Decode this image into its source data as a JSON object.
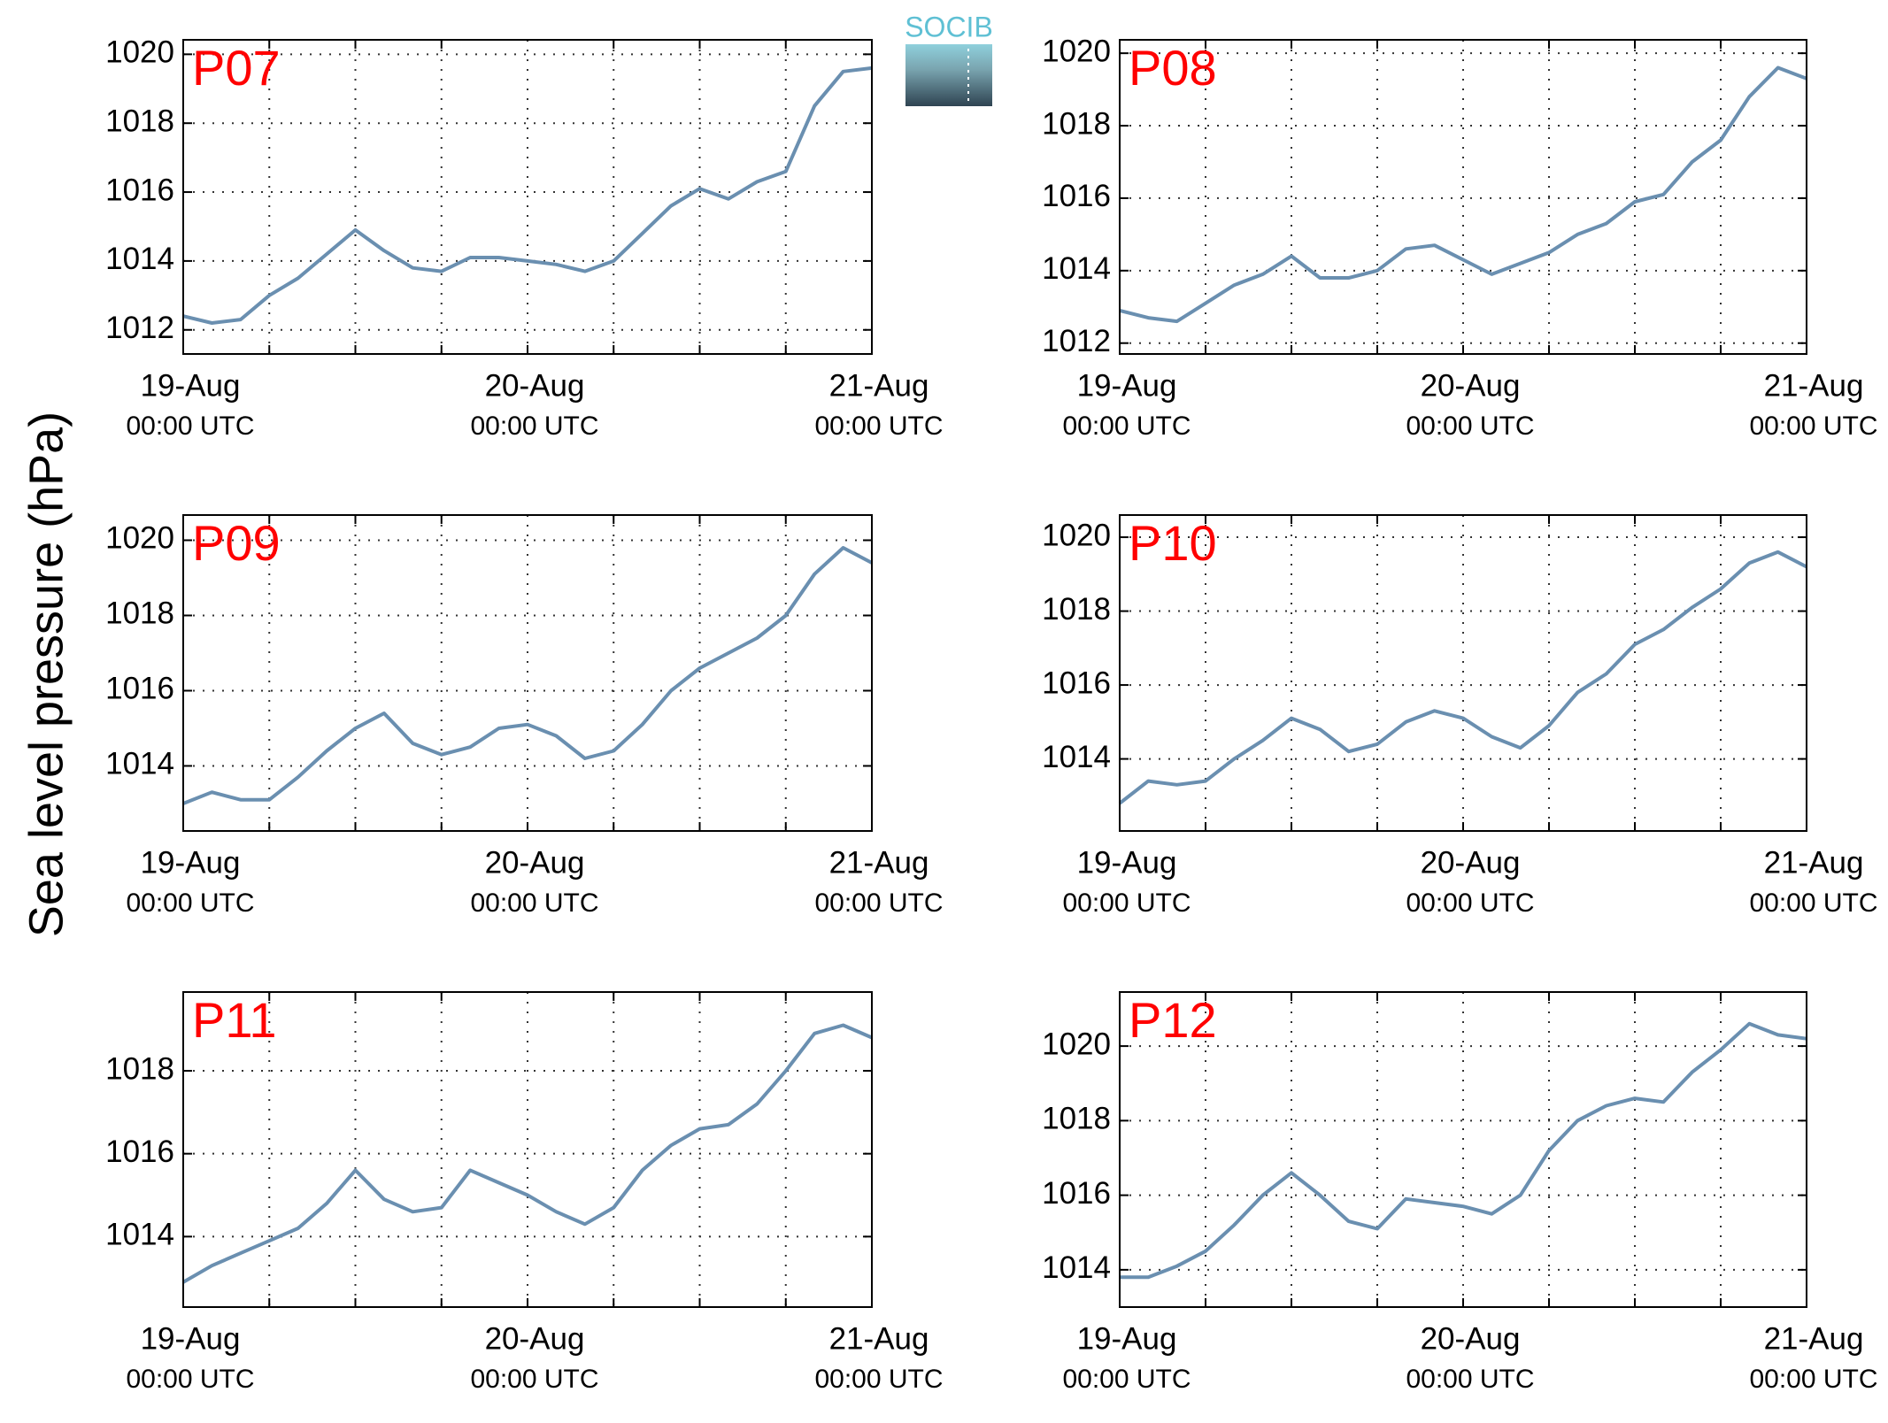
{
  "ylabel": "Sea level pressure (hPa)",
  "logo": "SOCIB",
  "chart_data": [
    {
      "type": "line",
      "title": "P07",
      "xlim": [
        0,
        48
      ],
      "ylim": [
        1011.3,
        1020.42
      ],
      "xticks": [
        {
          "value": 0,
          "label": "19-Aug",
          "sublabel": "00:00 UTC"
        },
        {
          "value": 24,
          "label": "20-Aug",
          "sublabel": "00:00 UTC"
        },
        {
          "value": 48,
          "label": "21-Aug",
          "sublabel": "00:00 UTC"
        }
      ],
      "xminor": [
        6,
        12,
        18,
        30,
        36,
        42
      ],
      "yticks": [
        1012,
        1014,
        1016,
        1018,
        1020
      ],
      "grid": true,
      "x": [
        0,
        2,
        4,
        6,
        8,
        10,
        12,
        14,
        16,
        18,
        20,
        22,
        24,
        26,
        28,
        30,
        32,
        34,
        36,
        38,
        40,
        42,
        44,
        46,
        48
      ],
      "series": [
        {
          "color": "#6a8fb0",
          "values": [
            1012.4,
            1012.2,
            1012.3,
            1013.0,
            1013.5,
            1014.2,
            1014.9,
            1014.3,
            1013.8,
            1013.7,
            1014.1,
            1014.1,
            1014.0,
            1013.9,
            1013.7,
            1014.0,
            1014.8,
            1015.6,
            1016.1,
            1015.8,
            1016.3,
            1016.6,
            1018.5,
            1019.5,
            1019.6
          ]
        }
      ]
    },
    {
      "type": "line",
      "title": "P08",
      "xlim": [
        0,
        48
      ],
      "ylim": [
        1011.7,
        1020.37
      ],
      "xticks": [
        {
          "value": 0,
          "label": "19-Aug",
          "sublabel": "00:00 UTC"
        },
        {
          "value": 24,
          "label": "20-Aug",
          "sublabel": "00:00 UTC"
        },
        {
          "value": 48,
          "label": "21-Aug",
          "sublabel": "00:00 UTC"
        }
      ],
      "xminor": [
        6,
        12,
        18,
        30,
        36,
        42
      ],
      "yticks": [
        1012,
        1014,
        1016,
        1018,
        1020
      ],
      "grid": true,
      "x": [
        0,
        2,
        4,
        6,
        8,
        10,
        12,
        14,
        16,
        18,
        20,
        22,
        24,
        26,
        28,
        30,
        32,
        34,
        36,
        38,
        40,
        42,
        44,
        46,
        48
      ],
      "series": [
        {
          "color": "#6a8fb0",
          "values": [
            1012.9,
            1012.7,
            1012.6,
            1013.1,
            1013.6,
            1013.9,
            1014.4,
            1013.8,
            1013.8,
            1014.0,
            1014.6,
            1014.7,
            1014.3,
            1013.9,
            1014.2,
            1014.5,
            1015.0,
            1015.3,
            1015.9,
            1016.1,
            1017.0,
            1017.6,
            1018.8,
            1019.6,
            1019.3
          ]
        }
      ]
    },
    {
      "type": "line",
      "title": "P09",
      "xlim": [
        0,
        48
      ],
      "ylim": [
        1012.27,
        1020.67
      ],
      "xticks": [
        {
          "value": 0,
          "label": "19-Aug",
          "sublabel": "00:00 UTC"
        },
        {
          "value": 24,
          "label": "20-Aug",
          "sublabel": "00:00 UTC"
        },
        {
          "value": 48,
          "label": "21-Aug",
          "sublabel": "00:00 UTC"
        }
      ],
      "xminor": [
        6,
        12,
        18,
        30,
        36,
        42
      ],
      "yticks": [
        1014,
        1016,
        1018,
        1020
      ],
      "grid": true,
      "x": [
        0,
        2,
        4,
        6,
        8,
        10,
        12,
        14,
        16,
        18,
        20,
        22,
        24,
        26,
        28,
        30,
        32,
        34,
        36,
        38,
        40,
        42,
        44,
        46,
        48
      ],
      "series": [
        {
          "color": "#6a8fb0",
          "values": [
            1013.0,
            1013.3,
            1013.1,
            1013.1,
            1013.7,
            1014.4,
            1015.0,
            1015.4,
            1014.6,
            1014.3,
            1014.5,
            1015.0,
            1015.1,
            1014.8,
            1014.2,
            1014.4,
            1015.1,
            1016.0,
            1016.6,
            1017.0,
            1017.4,
            1018.0,
            1019.1,
            1019.8,
            1019.4
          ]
        }
      ]
    },
    {
      "type": "line",
      "title": "P10",
      "xlim": [
        0,
        48
      ],
      "ylim": [
        1012.05,
        1020.6
      ],
      "xticks": [
        {
          "value": 0,
          "label": "19-Aug",
          "sublabel": "00:00 UTC"
        },
        {
          "value": 24,
          "label": "20-Aug",
          "sublabel": "00:00 UTC"
        },
        {
          "value": 48,
          "label": "21-Aug",
          "sublabel": "00:00 UTC"
        }
      ],
      "xminor": [
        6,
        12,
        18,
        30,
        36,
        42
      ],
      "yticks": [
        1014,
        1016,
        1018,
        1020
      ],
      "grid": true,
      "x": [
        0,
        2,
        4,
        6,
        8,
        10,
        12,
        14,
        16,
        18,
        20,
        22,
        24,
        26,
        28,
        30,
        32,
        34,
        36,
        38,
        40,
        42,
        44,
        46,
        48
      ],
      "series": [
        {
          "color": "#6a8fb0",
          "values": [
            1012.8,
            1013.4,
            1013.3,
            1013.4,
            1014.0,
            1014.5,
            1015.1,
            1014.8,
            1014.2,
            1014.4,
            1015.0,
            1015.3,
            1015.1,
            1014.6,
            1014.3,
            1014.9,
            1015.8,
            1016.3,
            1017.1,
            1017.5,
            1018.1,
            1018.6,
            1019.3,
            1019.6,
            1019.2
          ]
        }
      ]
    },
    {
      "type": "line",
      "title": "P11",
      "xlim": [
        0,
        48
      ],
      "ylim": [
        1012.3,
        1019.9
      ],
      "xticks": [
        {
          "value": 0,
          "label": "19-Aug",
          "sublabel": "00:00 UTC"
        },
        {
          "value": 24,
          "label": "20-Aug",
          "sublabel": "00:00 UTC"
        },
        {
          "value": 48,
          "label": "21-Aug",
          "sublabel": "00:00 UTC"
        }
      ],
      "xminor": [
        6,
        12,
        18,
        30,
        36,
        42
      ],
      "yticks": [
        1014,
        1016,
        1018
      ],
      "grid": true,
      "x": [
        0,
        2,
        4,
        6,
        8,
        10,
        12,
        14,
        16,
        18,
        20,
        22,
        24,
        26,
        28,
        30,
        32,
        34,
        36,
        38,
        40,
        42,
        44,
        46,
        48
      ],
      "series": [
        {
          "color": "#6a8fb0",
          "values": [
            1012.9,
            1013.3,
            1013.6,
            1013.9,
            1014.2,
            1014.8,
            1015.6,
            1014.9,
            1014.6,
            1014.7,
            1015.6,
            1015.3,
            1015.0,
            1014.6,
            1014.3,
            1014.7,
            1015.6,
            1016.2,
            1016.6,
            1016.7,
            1017.2,
            1018.0,
            1018.9,
            1019.1,
            1018.8
          ]
        }
      ]
    },
    {
      "type": "line",
      "title": "P12",
      "xlim": [
        0,
        48
      ],
      "ylim": [
        1013.0,
        1021.45
      ],
      "xticks": [
        {
          "value": 0,
          "label": "19-Aug",
          "sublabel": "00:00 UTC"
        },
        {
          "value": 24,
          "label": "20-Aug",
          "sublabel": "00:00 UTC"
        },
        {
          "value": 48,
          "label": "21-Aug",
          "sublabel": "00:00 UTC"
        }
      ],
      "xminor": [
        6,
        12,
        18,
        30,
        36,
        42
      ],
      "yticks": [
        1014,
        1016,
        1018,
        1020
      ],
      "grid": true,
      "x": [
        0,
        2,
        4,
        6,
        8,
        10,
        12,
        14,
        16,
        18,
        20,
        22,
        24,
        26,
        28,
        30,
        32,
        34,
        36,
        38,
        40,
        42,
        44,
        46,
        48
      ],
      "series": [
        {
          "color": "#6a8fb0",
          "values": [
            1013.8,
            1013.8,
            1014.1,
            1014.5,
            1015.2,
            1016.0,
            1016.6,
            1016.0,
            1015.3,
            1015.1,
            1015.9,
            1015.8,
            1015.7,
            1015.5,
            1016.0,
            1017.2,
            1018.0,
            1018.4,
            1018.6,
            1018.5,
            1019.3,
            1019.9,
            1020.6,
            1020.3,
            1020.2
          ]
        }
      ]
    }
  ]
}
